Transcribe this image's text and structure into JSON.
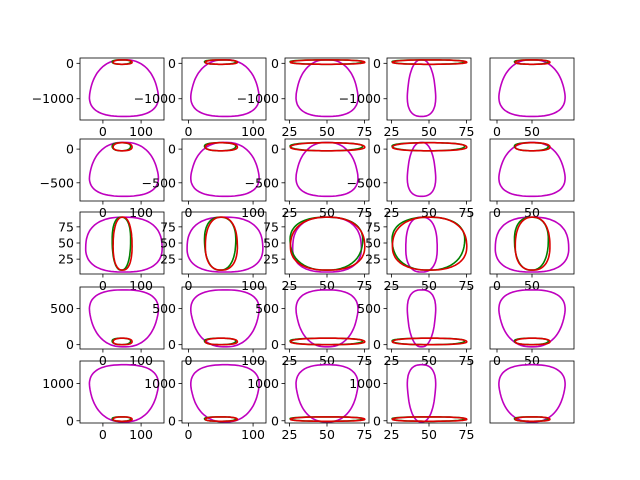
{
  "chart_data": {
    "type": "line",
    "description_grid": {
      "rows": 5,
      "cols": 5
    },
    "colors": {
      "outer": "#bf00bf",
      "inner_green": "#008000",
      "inner_red": "#dd0000",
      "axes": "#000000"
    },
    "panels": [
      {
        "row": 0,
        "col": 0,
        "xlim": [
          -60,
          160
        ],
        "ylim": [
          -1600,
          150
        ],
        "xticks": [
          "0",
          "100"
        ],
        "xtickvals": [
          0,
          100
        ],
        "yticks": [
          "0",
          "−1000"
        ],
        "ytickvals": [
          0,
          -1000
        ],
        "outer": {
          "x": [
            -50,
            160
          ],
          "y": [
            -1500,
            100
          ]
        },
        "inner": {
          "x": [
            24,
            76
          ],
          "y": [
            -25,
            95
          ]
        }
      },
      {
        "row": 0,
        "col": 1,
        "xlim": [
          -10,
          120
        ],
        "ylim": [
          -1600,
          150
        ],
        "xticks": [
          "0",
          "100"
        ],
        "xtickvals": [
          0,
          100
        ],
        "yticks": [
          "0",
          "−1000"
        ],
        "ytickvals": [
          0,
          -1000
        ],
        "outer": {
          "x": [
            -5,
            118
          ],
          "y": [
            -1500,
            100
          ]
        },
        "inner": {
          "x": [
            24,
            76
          ],
          "y": [
            -25,
            95
          ]
        }
      },
      {
        "row": 0,
        "col": 2,
        "xlim": [
          22,
          78
        ],
        "ylim": [
          -1600,
          150
        ],
        "xticks": [
          "25",
          "50",
          "75"
        ],
        "xtickvals": [
          25,
          50,
          75
        ],
        "yticks": [
          "0",
          "−1000"
        ],
        "ytickvals": [
          0,
          -1000
        ],
        "outer": {
          "x": [
            26,
            74
          ],
          "y": [
            -1500,
            100
          ]
        },
        "inner": {
          "x": [
            24,
            76
          ],
          "y": [
            -25,
            95
          ]
        }
      },
      {
        "row": 0,
        "col": 3,
        "xlim": [
          22,
          78
        ],
        "ylim": [
          -1600,
          150
        ],
        "xticks": [
          "25",
          "50",
          "75"
        ],
        "xtickvals": [
          25,
          50,
          75
        ],
        "yticks": [
          "0",
          "−1000"
        ],
        "ytickvals": [
          0,
          -1000
        ],
        "outer": {
          "x": [
            34,
            56
          ],
          "y": [
            -1500,
            100
          ]
        },
        "inner": {
          "x": [
            24,
            76
          ],
          "y": [
            -25,
            95
          ]
        }
      },
      {
        "row": 0,
        "col": 4,
        "xlim": [
          -10,
          110
        ],
        "ylim": [
          -1600,
          150
        ],
        "xticks": [
          "0",
          "50"
        ],
        "xtickvals": [
          0,
          50
        ],
        "yticks": [],
        "ytickvals": [],
        "outer": {
          "x": [
            -5,
            105
          ],
          "y": [
            -1500,
            100
          ]
        },
        "inner": {
          "x": [
            24,
            76
          ],
          "y": [
            -25,
            95
          ]
        }
      },
      {
        "row": 1,
        "col": 0,
        "xlim": [
          -60,
          160
        ],
        "ylim": [
          -770,
          150
        ],
        "xticks": [
          "0",
          "100"
        ],
        "xtickvals": [
          0,
          100
        ],
        "yticks": [
          "0",
          "−500"
        ],
        "ytickvals": [
          0,
          -500
        ],
        "outer": {
          "x": [
            -50,
            160
          ],
          "y": [
            -700,
            100
          ]
        },
        "inner": {
          "x": [
            24,
            76
          ],
          "y": [
            -25,
            95
          ]
        }
      },
      {
        "row": 1,
        "col": 1,
        "xlim": [
          -10,
          120
        ],
        "ylim": [
          -770,
          150
        ],
        "xticks": [
          "0",
          "100"
        ],
        "xtickvals": [
          0,
          100
        ],
        "yticks": [
          "0",
          "−500"
        ],
        "ytickvals": [
          0,
          -500
        ],
        "outer": {
          "x": [
            -5,
            118
          ],
          "y": [
            -700,
            100
          ]
        },
        "inner": {
          "x": [
            24,
            76
          ],
          "y": [
            -25,
            95
          ]
        }
      },
      {
        "row": 1,
        "col": 2,
        "xlim": [
          22,
          78
        ],
        "ylim": [
          -770,
          150
        ],
        "xticks": [
          "25",
          "50",
          "75"
        ],
        "xtickvals": [
          25,
          50,
          75
        ],
        "yticks": [
          "0",
          "−500"
        ],
        "ytickvals": [
          0,
          -500
        ],
        "outer": {
          "x": [
            26,
            74
          ],
          "y": [
            -700,
            100
          ]
        },
        "inner": {
          "x": [
            24,
            76
          ],
          "y": [
            -25,
            95
          ]
        }
      },
      {
        "row": 1,
        "col": 3,
        "xlim": [
          22,
          78
        ],
        "ylim": [
          -770,
          150
        ],
        "xticks": [
          "25",
          "50",
          "75"
        ],
        "xtickvals": [
          25,
          50,
          75
        ],
        "yticks": [
          "0",
          "−500"
        ],
        "ytickvals": [
          0,
          -500
        ],
        "outer": {
          "x": [
            34,
            56
          ],
          "y": [
            -700,
            100
          ]
        },
        "inner": {
          "x": [
            24,
            76
          ],
          "y": [
            -25,
            95
          ]
        }
      },
      {
        "row": 1,
        "col": 4,
        "xlim": [
          -10,
          110
        ],
        "ylim": [
          -770,
          150
        ],
        "xticks": [
          "0",
          "50"
        ],
        "xtickvals": [
          0,
          50
        ],
        "yticks": [],
        "ytickvals": [],
        "outer": {
          "x": [
            -5,
            105
          ],
          "y": [
            -700,
            100
          ]
        },
        "inner": {
          "x": [
            24,
            76
          ],
          "y": [
            -25,
            95
          ]
        }
      },
      {
        "row": 2,
        "col": 0,
        "xlim": [
          -60,
          160
        ],
        "ylim": [
          2,
          98
        ],
        "xticks": [
          "0",
          "100"
        ],
        "xtickvals": [
          0,
          100
        ],
        "yticks": [
          "75",
          "50",
          "25"
        ],
        "ytickvals": [
          75,
          50,
          25
        ],
        "outer": {
          "x": [
            -50,
            160
          ],
          "y": [
            5,
            90
          ]
        },
        "inner": {
          "x": [
            24,
            76
          ],
          "y": [
            8,
            90
          ]
        }
      },
      {
        "row": 2,
        "col": 1,
        "xlim": [
          -10,
          120
        ],
        "ylim": [
          2,
          98
        ],
        "xticks": [
          "0",
          "100"
        ],
        "xtickvals": [
          0,
          100
        ],
        "yticks": [
          "75",
          "50",
          "25"
        ],
        "ytickvals": [
          75,
          50,
          25
        ],
        "outer": {
          "x": [
            -5,
            118
          ],
          "y": [
            5,
            90
          ]
        },
        "inner": {
          "x": [
            24,
            76
          ],
          "y": [
            8,
            90
          ]
        }
      },
      {
        "row": 2,
        "col": 2,
        "xlim": [
          22,
          78
        ],
        "ylim": [
          2,
          98
        ],
        "xticks": [
          "25",
          "50",
          "75"
        ],
        "xtickvals": [
          25,
          50,
          75
        ],
        "yticks": [
          "75",
          "50",
          "25"
        ],
        "ytickvals": [
          75,
          50,
          25
        ],
        "outer": {
          "x": [
            26,
            74
          ],
          "y": [
            5,
            90
          ]
        },
        "inner": {
          "x": [
            24,
            76
          ],
          "y": [
            8,
            90
          ]
        }
      },
      {
        "row": 2,
        "col": 3,
        "xlim": [
          22,
          78
        ],
        "ylim": [
          2,
          98
        ],
        "xticks": [
          "25",
          "50",
          "75"
        ],
        "xtickvals": [
          25,
          50,
          75
        ],
        "yticks": [
          "75",
          "50",
          "25"
        ],
        "ytickvals": [
          75,
          50,
          25
        ],
        "outer": {
          "x": [
            34,
            56
          ],
          "y": [
            5,
            90
          ]
        },
        "inner": {
          "x": [
            24,
            76
          ],
          "y": [
            8,
            90
          ]
        }
      },
      {
        "row": 2,
        "col": 4,
        "xlim": [
          -10,
          110
        ],
        "ylim": [
          2,
          98
        ],
        "xticks": [
          "0",
          "50"
        ],
        "xtickvals": [
          0,
          50
        ],
        "yticks": [],
        "ytickvals": [],
        "outer": {
          "x": [
            -5,
            105
          ],
          "y": [
            5,
            90
          ]
        },
        "inner": {
          "x": [
            24,
            76
          ],
          "y": [
            8,
            90
          ]
        }
      },
      {
        "row": 3,
        "col": 0,
        "xlim": [
          -60,
          160
        ],
        "ylim": [
          -60,
          800
        ],
        "xticks": [
          "0",
          "100"
        ],
        "xtickvals": [
          0,
          100
        ],
        "yticks": [
          "500",
          "0"
        ],
        "ytickvals": [
          500,
          0
        ],
        "outer": {
          "x": [
            -50,
            160
          ],
          "y": [
            -30,
            760
          ]
        },
        "inner": {
          "x": [
            24,
            76
          ],
          "y": [
            0,
            90
          ]
        }
      },
      {
        "row": 3,
        "col": 1,
        "xlim": [
          -10,
          120
        ],
        "ylim": [
          -60,
          800
        ],
        "xticks": [
          "0",
          "100"
        ],
        "xtickvals": [
          0,
          100
        ],
        "yticks": [
          "500",
          "0"
        ],
        "ytickvals": [
          500,
          0
        ],
        "outer": {
          "x": [
            -5,
            118
          ],
          "y": [
            -30,
            760
          ]
        },
        "inner": {
          "x": [
            24,
            76
          ],
          "y": [
            0,
            90
          ]
        }
      },
      {
        "row": 3,
        "col": 2,
        "xlim": [
          22,
          78
        ],
        "ylim": [
          -60,
          800
        ],
        "xticks": [
          "25",
          "50",
          "75"
        ],
        "xtickvals": [
          25,
          50,
          75
        ],
        "yticks": [
          "500",
          "0"
        ],
        "ytickvals": [
          500,
          0
        ],
        "outer": {
          "x": [
            26,
            74
          ],
          "y": [
            -30,
            760
          ]
        },
        "inner": {
          "x": [
            24,
            76
          ],
          "y": [
            0,
            90
          ]
        }
      },
      {
        "row": 3,
        "col": 3,
        "xlim": [
          22,
          78
        ],
        "ylim": [
          -60,
          800
        ],
        "xticks": [
          "25",
          "50",
          "75"
        ],
        "xtickvals": [
          25,
          50,
          75
        ],
        "yticks": [
          "500",
          "0"
        ],
        "ytickvals": [
          500,
          0
        ],
        "outer": {
          "x": [
            34,
            56
          ],
          "y": [
            -30,
            760
          ]
        },
        "inner": {
          "x": [
            24,
            76
          ],
          "y": [
            0,
            90
          ]
        }
      },
      {
        "row": 3,
        "col": 4,
        "xlim": [
          -10,
          110
        ],
        "ylim": [
          -60,
          800
        ],
        "xticks": [
          "0",
          "50"
        ],
        "xtickvals": [
          0,
          50
        ],
        "yticks": [],
        "ytickvals": [],
        "outer": {
          "x": [
            -5,
            105
          ],
          "y": [
            -30,
            760
          ]
        },
        "inner": {
          "x": [
            24,
            76
          ],
          "y": [
            0,
            90
          ]
        }
      },
      {
        "row": 4,
        "col": 0,
        "xlim": [
          -60,
          160
        ],
        "ylim": [
          -60,
          1600
        ],
        "xticks": [
          "0",
          "100"
        ],
        "xtickvals": [
          0,
          100
        ],
        "yticks": [
          "1000",
          "0"
        ],
        "ytickvals": [
          1000,
          0
        ],
        "outer": {
          "x": [
            -50,
            160
          ],
          "y": [
            -30,
            1500
          ]
        },
        "inner": {
          "x": [
            24,
            76
          ],
          "y": [
            0,
            90
          ]
        }
      },
      {
        "row": 4,
        "col": 1,
        "xlim": [
          -10,
          120
        ],
        "ylim": [
          -60,
          1600
        ],
        "xticks": [
          "0",
          "100"
        ],
        "xtickvals": [
          0,
          100
        ],
        "yticks": [
          "1000",
          "0"
        ],
        "ytickvals": [
          1000,
          0
        ],
        "outer": {
          "x": [
            -5,
            118
          ],
          "y": [
            -30,
            1500
          ]
        },
        "inner": {
          "x": [
            24,
            76
          ],
          "y": [
            0,
            90
          ]
        }
      },
      {
        "row": 4,
        "col": 2,
        "xlim": [
          22,
          78
        ],
        "ylim": [
          -60,
          1600
        ],
        "xticks": [
          "25",
          "50",
          "75"
        ],
        "xtickvals": [
          25,
          50,
          75
        ],
        "yticks": [
          "1000",
          "0"
        ],
        "ytickvals": [
          1000,
          0
        ],
        "outer": {
          "x": [
            26,
            74
          ],
          "y": [
            -30,
            1500
          ]
        },
        "inner": {
          "x": [
            24,
            76
          ],
          "y": [
            0,
            90
          ]
        }
      },
      {
        "row": 4,
        "col": 3,
        "xlim": [
          22,
          78
        ],
        "ylim": [
          -60,
          1600
        ],
        "xticks": [
          "25",
          "50",
          "75"
        ],
        "xtickvals": [
          25,
          50,
          75
        ],
        "yticks": [
          "1000",
          "0"
        ],
        "ytickvals": [
          1000,
          0
        ],
        "outer": {
          "x": [
            34,
            56
          ],
          "y": [
            -30,
            1500
          ]
        },
        "inner": {
          "x": [
            24,
            76
          ],
          "y": [
            0,
            90
          ]
        }
      },
      {
        "row": 4,
        "col": 4,
        "xlim": [
          -10,
          110
        ],
        "ylim": [
          -60,
          1600
        ],
        "xticks": [],
        "xtickvals": [],
        "yticks": [],
        "ytickvals": [],
        "outer": {
          "x": [
            -5,
            105
          ],
          "y": [
            -30,
            1500
          ]
        },
        "inner": {
          "x": [
            24,
            76
          ],
          "y": [
            0,
            90
          ]
        }
      }
    ]
  }
}
